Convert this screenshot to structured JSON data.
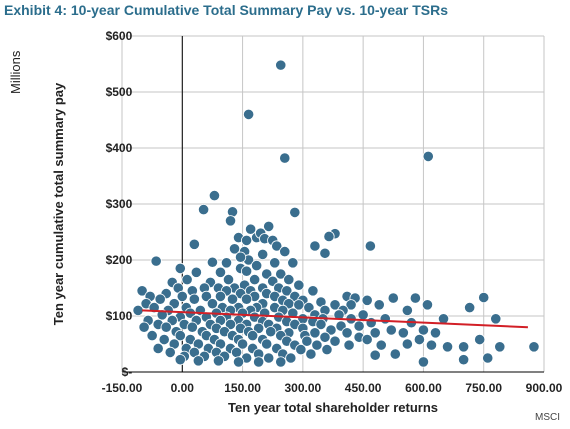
{
  "title": "Exhibit 4: 10-year Cumulative Total Summary Pay vs. 10-year TSRs",
  "units_label": "Millions",
  "source_label": "MSCI",
  "colors": {
    "title": "#2b6d8c",
    "point_fill": "#3a6e8e",
    "point_stroke": "#ffffff",
    "trend": "#d21f26",
    "grid": "#c6c6c6",
    "axis": "#000000"
  },
  "chart_data": {
    "type": "scatter",
    "title": "Exhibit 4: 10-year Cumulative Total Summary Pay vs. 10-year TSRs",
    "xlabel": "Ten year total shareholder returns",
    "ylabel": "Ten year cumulative total summary pay",
    "xlim": [
      -150,
      900
    ],
    "ylim": [
      0,
      600
    ],
    "x_ticks": [
      -150,
      0,
      150,
      300,
      450,
      600,
      750,
      900
    ],
    "x_tick_labels": [
      "-150.00",
      "0.00",
      "150.00",
      "300.00",
      "450.00",
      "600.00",
      "750.00",
      "900.00"
    ],
    "y_ticks": [
      0,
      100,
      200,
      300,
      400,
      500,
      600
    ],
    "y_tick_labels": [
      "$-",
      "$100",
      "$200",
      "$300",
      "$400",
      "$500",
      "$600"
    ],
    "grid": "both",
    "trendline": {
      "x": [
        -100,
        860
      ],
      "y": [
        110,
        80
      ]
    },
    "series": [
      {
        "points": [
          [
            245,
            548
          ],
          [
            165,
            460
          ],
          [
            255,
            382
          ],
          [
            612,
            385
          ],
          [
            80,
            315
          ],
          [
            280,
            285
          ],
          [
            53,
            290
          ],
          [
            125,
            286
          ],
          [
            120,
            270
          ],
          [
            215,
            260
          ],
          [
            170,
            255
          ],
          [
            185,
            240
          ],
          [
            195,
            248
          ],
          [
            205,
            238
          ],
          [
            225,
            235
          ],
          [
            140,
            240
          ],
          [
            160,
            235
          ],
          [
            380,
            247
          ],
          [
            365,
            242
          ],
          [
            235,
            225
          ],
          [
            30,
            228
          ],
          [
            330,
            225
          ],
          [
            468,
            225
          ],
          [
            255,
            215
          ],
          [
            155,
            215
          ],
          [
            355,
            212
          ],
          [
            130,
            220
          ],
          [
            -65,
            198
          ],
          [
            165,
            200
          ],
          [
            200,
            210
          ],
          [
            75,
            196
          ],
          [
            110,
            195
          ],
          [
            -5,
            185
          ],
          [
            145,
            205
          ],
          [
            230,
            195
          ],
          [
            275,
            195
          ],
          [
            145,
            185
          ],
          [
            185,
            190
          ],
          [
            35,
            178
          ],
          [
            95,
            178
          ],
          [
            160,
            180
          ],
          [
            210,
            175
          ],
          [
            245,
            175
          ],
          [
            12,
            165
          ],
          [
            115,
            165
          ],
          [
            180,
            165
          ],
          [
            225,
            162
          ],
          [
            265,
            165
          ],
          [
            -25,
            160
          ],
          [
            70,
            160
          ],
          [
            155,
            155
          ],
          [
            290,
            155
          ],
          [
            -10,
            150
          ],
          [
            55,
            150
          ],
          [
            90,
            150
          ],
          [
            130,
            150
          ],
          [
            200,
            150
          ],
          [
            240,
            150
          ],
          [
            -100,
            145
          ],
          [
            25,
            145
          ],
          [
            110,
            145
          ],
          [
            170,
            145
          ],
          [
            260,
            145
          ],
          [
            325,
            145
          ],
          [
            -40,
            140
          ],
          [
            145,
            140
          ],
          [
            210,
            140
          ],
          [
            -80,
            135
          ],
          [
            0,
            135
          ],
          [
            60,
            135
          ],
          [
            95,
            135
          ],
          [
            180,
            135
          ],
          [
            230,
            135
          ],
          [
            280,
            135
          ],
          [
            410,
            135
          ],
          [
            430,
            132
          ],
          [
            525,
            132
          ],
          [
            580,
            132
          ],
          [
            750,
            133
          ],
          [
            -55,
            130
          ],
          [
            30,
            130
          ],
          [
            125,
            130
          ],
          [
            160,
            130
          ],
          [
            250,
            128
          ],
          [
            300,
            128
          ],
          [
            345,
            125
          ],
          [
            460,
            128
          ],
          [
            -90,
            122
          ],
          [
            -20,
            122
          ],
          [
            75,
            122
          ],
          [
            200,
            122
          ],
          [
            265,
            122
          ],
          [
            290,
            120
          ],
          [
            380,
            120
          ],
          [
            420,
            120
          ],
          [
            490,
            120
          ],
          [
            610,
            120
          ],
          [
            715,
            115
          ],
          [
            -70,
            115
          ],
          [
            10,
            115
          ],
          [
            100,
            115
          ],
          [
            140,
            115
          ],
          [
            185,
            115
          ],
          [
            230,
            115
          ],
          [
            315,
            115
          ],
          [
            -110,
            110
          ],
          [
            -35,
            110
          ],
          [
            45,
            110
          ],
          [
            120,
            110
          ],
          [
            170,
            110
          ],
          [
            250,
            110
          ],
          [
            355,
            110
          ],
          [
            400,
            110
          ],
          [
            560,
            110
          ],
          [
            -50,
            102
          ],
          [
            20,
            105
          ],
          [
            85,
            105
          ],
          [
            150,
            105
          ],
          [
            205,
            105
          ],
          [
            275,
            105
          ],
          [
            330,
            102
          ],
          [
            390,
            102
          ],
          [
            450,
            102
          ],
          [
            -5,
            98
          ],
          [
            60,
            98
          ],
          [
            110,
            98
          ],
          [
            180,
            98
          ],
          [
            240,
            98
          ],
          [
            300,
            95
          ],
          [
            350,
            95
          ],
          [
            420,
            95
          ],
          [
            505,
            95
          ],
          [
            650,
            95
          ],
          [
            780,
            95
          ],
          [
            -85,
            92
          ],
          [
            -25,
            92
          ],
          [
            35,
            92
          ],
          [
            95,
            92
          ],
          [
            140,
            92
          ],
          [
            200,
            90
          ],
          [
            260,
            90
          ],
          [
            325,
            90
          ],
          [
            470,
            88
          ],
          [
            570,
            88
          ],
          [
            -60,
            85
          ],
          [
            5,
            85
          ],
          [
            70,
            85
          ],
          [
            120,
            85
          ],
          [
            160,
            85
          ],
          [
            215,
            85
          ],
          [
            280,
            85
          ],
          [
            345,
            85
          ],
          [
            395,
            82
          ],
          [
            440,
            82
          ],
          [
            -95,
            80
          ],
          [
            -40,
            80
          ],
          [
            25,
            80
          ],
          [
            85,
            78
          ],
          [
            145,
            78
          ],
          [
            190,
            78
          ],
          [
            235,
            78
          ],
          [
            300,
            78
          ],
          [
            370,
            75
          ],
          [
            520,
            75
          ],
          [
            600,
            75
          ],
          [
            -15,
            72
          ],
          [
            50,
            72
          ],
          [
            105,
            72
          ],
          [
            165,
            72
          ],
          [
            220,
            72
          ],
          [
            265,
            70
          ],
          [
            330,
            70
          ],
          [
            410,
            70
          ],
          [
            480,
            70
          ],
          [
            550,
            70
          ],
          [
            630,
            70
          ],
          [
            -75,
            65
          ],
          [
            -5,
            65
          ],
          [
            60,
            65
          ],
          [
            125,
            65
          ],
          [
            175,
            65
          ],
          [
            245,
            65
          ],
          [
            305,
            65
          ],
          [
            355,
            62
          ],
          [
            440,
            62
          ],
          [
            -45,
            58
          ],
          [
            20,
            58
          ],
          [
            80,
            58
          ],
          [
            140,
            58
          ],
          [
            200,
            58
          ],
          [
            260,
            55
          ],
          [
            310,
            55
          ],
          [
            380,
            55
          ],
          [
            460,
            58
          ],
          [
            590,
            58
          ],
          [
            740,
            58
          ],
          [
            -20,
            50
          ],
          [
            40,
            50
          ],
          [
            95,
            50
          ],
          [
            150,
            50
          ],
          [
            210,
            50
          ],
          [
            280,
            48
          ],
          [
            335,
            48
          ],
          [
            415,
            48
          ],
          [
            495,
            48
          ],
          [
            560,
            50
          ],
          [
            620,
            48
          ],
          [
            660,
            45
          ],
          [
            700,
            45
          ],
          [
            790,
            45
          ],
          [
            875,
            45
          ],
          [
            -60,
            42
          ],
          [
            10,
            42
          ],
          [
            65,
            42
          ],
          [
            120,
            42
          ],
          [
            175,
            42
          ],
          [
            235,
            42
          ],
          [
            295,
            40
          ],
          [
            360,
            40
          ],
          [
            -30,
            35
          ],
          [
            30,
            35
          ],
          [
            85,
            35
          ],
          [
            135,
            35
          ],
          [
            190,
            32
          ],
          [
            250,
            32
          ],
          [
            320,
            32
          ],
          [
            5,
            28
          ],
          [
            55,
            28
          ],
          [
            105,
            28
          ],
          [
            160,
            25
          ],
          [
            215,
            25
          ],
          [
            270,
            25
          ],
          [
            -5,
            22
          ],
          [
            40,
            20
          ],
          [
            90,
            20
          ],
          [
            140,
            18
          ],
          [
            190,
            18
          ],
          [
            245,
            18
          ],
          [
            700,
            22
          ],
          [
            760,
            25
          ],
          [
            600,
            18
          ],
          [
            480,
            30
          ],
          [
            530,
            32
          ]
        ]
      }
    ]
  }
}
